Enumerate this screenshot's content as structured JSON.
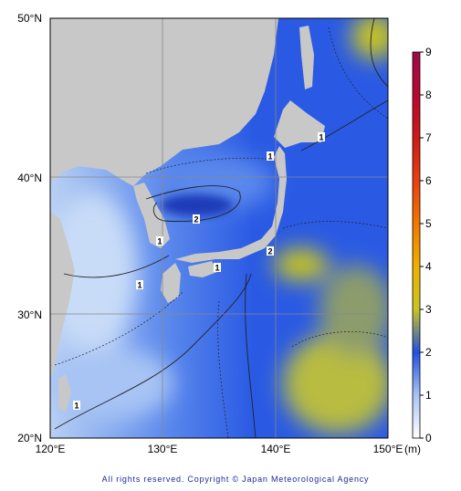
{
  "map": {
    "lat_labels": [
      "50°N",
      "40°N",
      "30°N",
      "20°N"
    ],
    "lon_labels": [
      "120°E",
      "130°E",
      "140°E",
      "150°E"
    ],
    "contour_labels": [
      "1",
      "1",
      "2",
      "1",
      "2",
      "1",
      "1",
      "1"
    ]
  },
  "colorbar": {
    "ticks": [
      0,
      1,
      2,
      3,
      4,
      5,
      6,
      7,
      8,
      9
    ],
    "unit": "(m)"
  },
  "footer": {
    "copyright": "All rights reserved. Copyright © Japan Meteorological Agency"
  }
}
